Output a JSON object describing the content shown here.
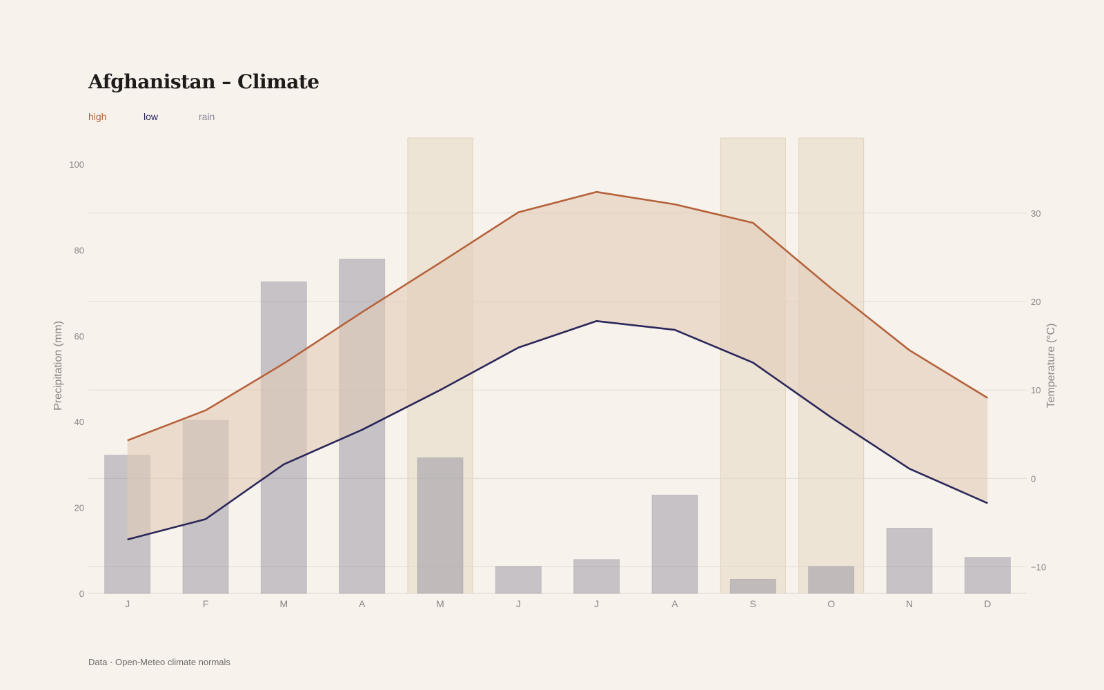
{
  "title": "Afghanistan – Climate",
  "legend": {
    "high": "high",
    "low": "low",
    "rain": "rain"
  },
  "source": "Data · Open-Meteo climate normals",
  "colors": {
    "high": "#b5623b",
    "low": "#2a2659",
    "rain": "#8a8799",
    "band": "#e3cbb9",
    "highlight": "#e6d9c2"
  },
  "chart_data": {
    "type": "bar",
    "title": "Afghanistan – Climate",
    "categories": [
      "J",
      "F",
      "M",
      "A",
      "M",
      "J",
      "J",
      "A",
      "S",
      "O",
      "N",
      "D"
    ],
    "series": [
      {
        "name": "rain",
        "type": "bar",
        "axis": "left",
        "values": [
          32.2,
          40.3,
          72.6,
          77.9,
          31.6,
          6.3,
          7.9,
          22.9,
          3.3,
          6.3,
          15.2,
          8.4
        ]
      },
      {
        "name": "high",
        "type": "line",
        "axis": "right",
        "values": [
          4.3,
          7.7,
          13.0,
          18.8,
          24.4,
          30.1,
          32.4,
          31.0,
          28.9,
          21.5,
          14.5,
          9.1
        ]
      },
      {
        "name": "low",
        "type": "line",
        "axis": "right",
        "values": [
          -6.9,
          -4.6,
          1.6,
          5.5,
          10.0,
          14.8,
          17.8,
          16.8,
          13.1,
          6.9,
          1.1,
          -2.8
        ]
      }
    ],
    "highlighted_months": [
      4,
      8,
      9
    ],
    "ylabel": "Precipitation (mm)",
    "ylabel_right": "Temperature (°C)",
    "ylim": [
      0,
      100
    ],
    "ylim_right": [
      -13,
      38.5
    ],
    "yticks": [
      "0",
      "20",
      "40",
      "60",
      "80",
      "100"
    ],
    "yticks_right": [
      "−10",
      "0",
      "10",
      "20",
      "30"
    ],
    "grid": true,
    "legend_placement": "top-left"
  }
}
